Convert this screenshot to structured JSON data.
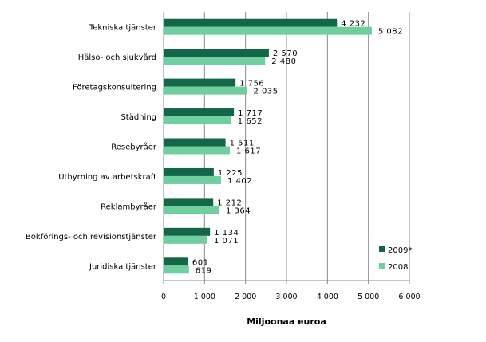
{
  "chart_data": {
    "type": "bar",
    "orientation": "horizontal",
    "categories": [
      "Tekniska tjänster",
      "Hälso- och sjukvård",
      "Företagskonsultering",
      "Städning",
      "Resebyråer",
      "Uthyrning av arbetskraft",
      "Reklambyråer",
      "Bokförings- och revisionstjänster",
      "Juridiska tjänster"
    ],
    "series": [
      {
        "name": "2009*",
        "color": "#136647",
        "values": [
          4232,
          2570,
          1756,
          1717,
          1511,
          1225,
          1212,
          1134,
          601
        ],
        "labels": [
          "4 232",
          "2 570",
          "1 756",
          "1 717",
          "1 511",
          "1 225",
          "1 212",
          "1 134",
          "601"
        ]
      },
      {
        "name": "2008",
        "color": "#70CF9E",
        "values": [
          5082,
          2480,
          2035,
          1652,
          1617,
          1402,
          1364,
          1071,
          619
        ],
        "labels": [
          "5 082",
          "2 480",
          "2 035",
          "1 652",
          "1 617",
          "1 402",
          "1 364",
          "1 071",
          "619"
        ]
      }
    ],
    "xlabel": "Miljoonaa euroa",
    "xlim": [
      0,
      6000
    ],
    "xticks": [
      0,
      1000,
      2000,
      3000,
      4000,
      5000,
      6000
    ],
    "xtick_labels": [
      "0",
      "1 000",
      "2 000",
      "3 000",
      "4 000",
      "5 000",
      "6 000"
    ],
    "grid": "vertical",
    "legend": "bottom-right"
  }
}
